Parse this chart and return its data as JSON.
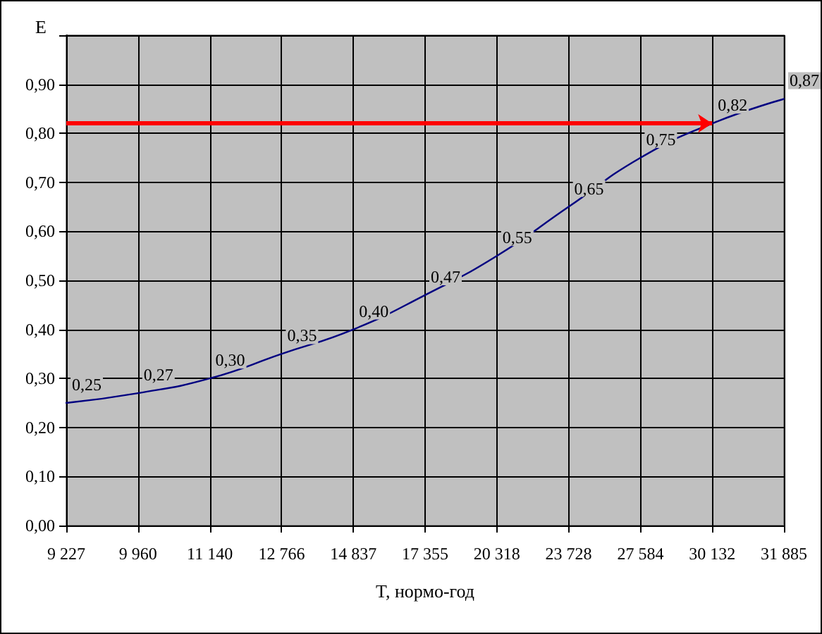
{
  "chart_data": {
    "type": "line",
    "xlabel": "T, нормо-год",
    "ylabel": "E",
    "categories": [
      "9 227",
      "9 960",
      "11 140",
      "12 766",
      "14 837",
      "17 355",
      "20 318",
      "23 728",
      "27 584",
      "30 132",
      "31 885"
    ],
    "values": [
      0.25,
      0.27,
      0.3,
      0.35,
      0.4,
      0.47,
      0.55,
      0.65,
      0.75,
      0.82,
      0.87
    ],
    "value_labels": [
      "0,25",
      "0,27",
      "0,30",
      "0,35",
      "0,40",
      "0,47",
      "0,55",
      "0,65",
      "0,75",
      "0,82",
      "0,87"
    ],
    "color": "#000080",
    "marker": "none",
    "line_style": "solid",
    "grid": true,
    "ylim": [
      0,
      1
    ],
    "yticks": [
      {
        "value": 0,
        "label": "0,00"
      },
      {
        "value": 0.1,
        "label": "0,10"
      },
      {
        "value": 0.2,
        "label": "0,20"
      },
      {
        "value": 0.3,
        "label": "0,30"
      },
      {
        "value": 0.4,
        "label": "0,40"
      },
      {
        "value": 0.5,
        "label": "0,50"
      },
      {
        "value": 0.6,
        "label": "0,60"
      },
      {
        "value": 0.7,
        "label": "0,70"
      },
      {
        "value": 0.8,
        "label": "0,80"
      },
      {
        "value": 0.9,
        "label": "0,90"
      },
      {
        "value": 1,
        "label": null
      }
    ],
    "ref_lines": [
      {
        "axis": "y",
        "value": 0.82,
        "color": "#ff0000"
      }
    ]
  }
}
